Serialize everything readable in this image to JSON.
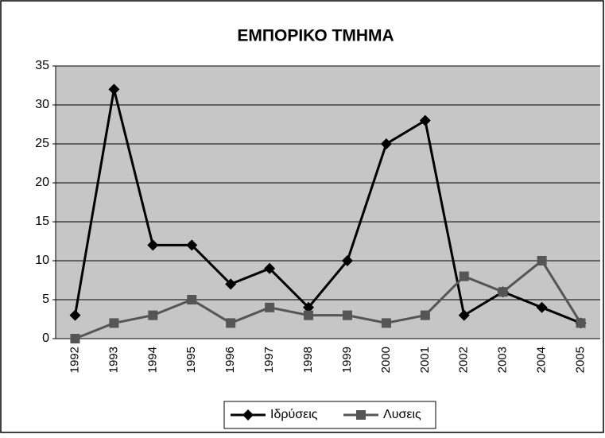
{
  "chart_data": {
    "type": "line",
    "title": "ΕΜΠΟΡΙΚΟ ΤΜΗΜΑ",
    "categories": [
      "1992",
      "1993",
      "1994",
      "1995",
      "1996",
      "1997",
      "1998",
      "1999",
      "2000",
      "2001",
      "2002",
      "2003",
      "2004",
      "2005"
    ],
    "series": [
      {
        "name": "Ιδρύσεις",
        "color": "#000000",
        "marker": "diamond",
        "values": [
          3,
          32,
          12,
          12,
          7,
          9,
          4,
          10,
          25,
          28,
          3,
          6,
          4,
          2
        ]
      },
      {
        "name": "Λυσεις",
        "color": "#555555",
        "marker": "square",
        "values": [
          0,
          2,
          3,
          5,
          2,
          4,
          3,
          3,
          2,
          3,
          8,
          6,
          10,
          2
        ]
      }
    ],
    "ylim": [
      0,
      35
    ],
    "yticks": [
      0,
      5,
      10,
      15,
      20,
      25,
      30,
      35
    ],
    "grid": true,
    "legend": "bottom"
  }
}
